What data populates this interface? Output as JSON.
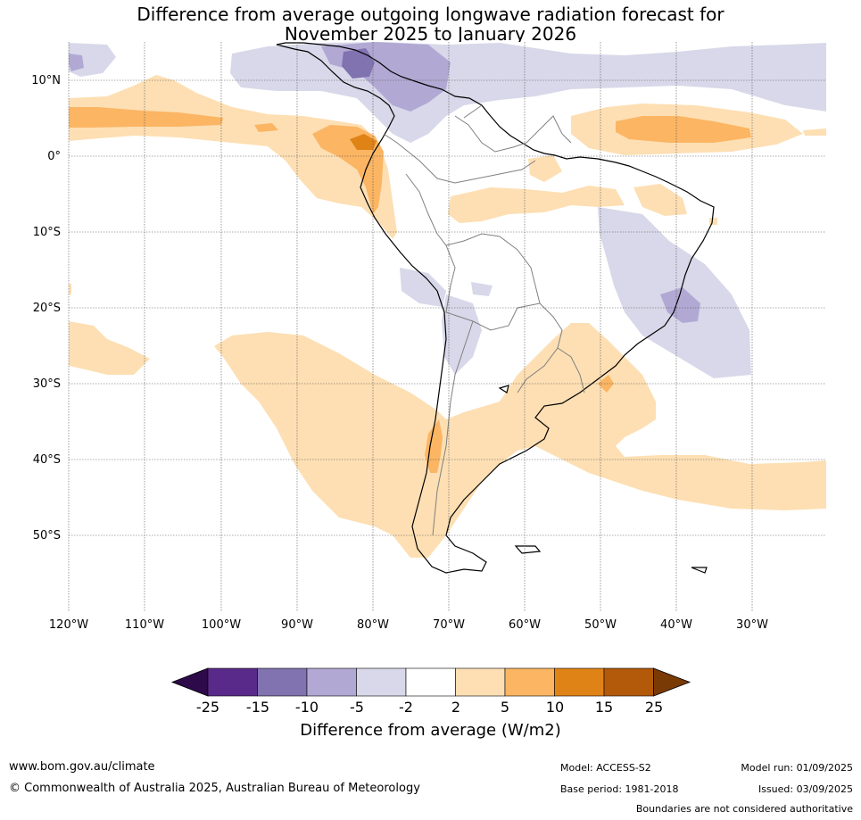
{
  "title_line1": "Difference from average outgoing longwave radiation forecast for",
  "title_line2": "November 2025 to January 2026",
  "lat_labels": [
    "10°N",
    "0°",
    "10°S",
    "20°S",
    "30°S",
    "40°S",
    "50°S"
  ],
  "lon_labels": [
    "120°W",
    "110°W",
    "100°W",
    "90°W",
    "80°W",
    "70°W",
    "60°W",
    "50°W",
    "40°W",
    "30°W"
  ],
  "colorbar": {
    "ticks": [
      "-25",
      "-15",
      "-10",
      "-5",
      "-2",
      "2",
      "5",
      "10",
      "15",
      "25"
    ],
    "label": "Difference from average (W/m2)",
    "colors": [
      "#2d0a4a",
      "#5a2a8a",
      "#8073b0",
      "#b1a9d3",
      "#d8d8ea",
      "#ffffff",
      "#fddfb3",
      "#fbb563",
      "#e08316",
      "#b35a0a",
      "#7a3a05"
    ]
  },
  "footer": {
    "url": "www.bom.gov.au/climate",
    "copyright": "© Commonwealth of Australia 2025, Australian Bureau of Meteorology",
    "model": "Model: ACCESS-S2",
    "base_period": "Base period: 1981-2018",
    "model_run": "Model run: 01/09/2025",
    "issued": "Issued: 03/09/2025",
    "boundaries": "Boundaries are not considered authoritative"
  }
}
